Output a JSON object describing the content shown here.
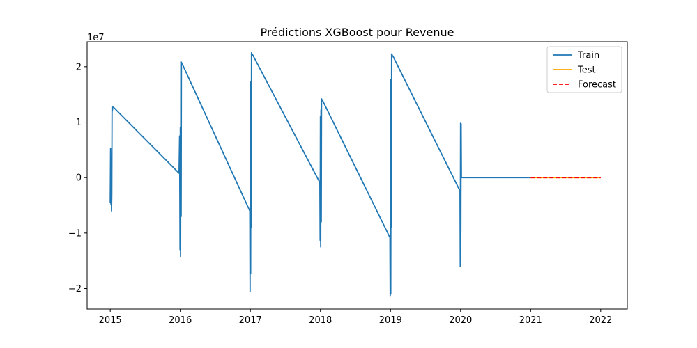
{
  "chart_data": {
    "type": "line",
    "title": "Prédictions XGBoost pour Revenue",
    "xlabel": "",
    "ylabel": "",
    "y_offset_label": "1e7",
    "xlim": [
      2014.67,
      2022.38
    ],
    "ylim": [
      -23700000,
      24500000
    ],
    "x_ticks": [
      {
        "value": 2015,
        "label": "2015"
      },
      {
        "value": 2016,
        "label": "2016"
      },
      {
        "value": 2017,
        "label": "2017"
      },
      {
        "value": 2018,
        "label": "2018"
      },
      {
        "value": 2019,
        "label": "2019"
      },
      {
        "value": 2020,
        "label": "2020"
      },
      {
        "value": 2021,
        "label": "2021"
      },
      {
        "value": 2022,
        "label": "2022"
      }
    ],
    "y_ticks": [
      {
        "value": 20000000,
        "label": "2"
      },
      {
        "value": 10000000,
        "label": "1"
      },
      {
        "value": 0,
        "label": "0"
      },
      {
        "value": -10000000,
        "label": "−1"
      },
      {
        "value": -20000000,
        "label": "−2"
      }
    ],
    "grid": false,
    "legend": "upper right",
    "series": [
      {
        "name": "Train",
        "color": "#1f77b4",
        "style": "solid",
        "x": [
          2015.0,
          2015.005,
          2015.01,
          2015.014,
          2015.018,
          2015.022,
          2015.026,
          2015.03,
          2015.034,
          2015.038,
          2015.045,
          2015.982,
          2015.99,
          2015.996,
          2016.0,
          2016.004,
          2016.008,
          2016.012,
          2016.016,
          2016.02,
          2016.024,
          2016.028,
          2016.035,
          2016.992,
          2016.996,
          2017.0,
          2017.004,
          2017.008,
          2017.012,
          2017.016,
          2017.02,
          2017.024,
          2017.028,
          2017.035,
          2017.992,
          2017.996,
          2018.0,
          2018.004,
          2018.008,
          2018.012,
          2018.016,
          2018.02,
          2018.024,
          2018.028,
          2018.035,
          2018.992,
          2018.996,
          2019.0,
          2019.004,
          2019.008,
          2019.012,
          2019.016,
          2019.02,
          2019.024,
          2019.028,
          2019.035,
          2019.992,
          2019.996,
          2020.0,
          2020.004,
          2020.008,
          2020.012,
          2020.016,
          2020.02,
          2021.0
        ],
        "y": [
          -4500000,
          5300000,
          -4800000,
          2500000,
          -6000000,
          -3000000,
          12800000,
          12000000,
          12600000,
          12700000,
          12700000,
          800000,
          7500000,
          -13000000,
          9000000,
          -14200000,
          20900000,
          -7000000,
          20800000,
          20600000,
          20500000,
          20400000,
          20300000,
          -6000000,
          -20600000,
          17200000,
          -17300000,
          17300000,
          -9000000,
          22500000,
          22400000,
          22300000,
          22200000,
          22100000,
          -900000,
          -11300000,
          11000000,
          -12500000,
          12200000,
          -8000000,
          14200000,
          14100000,
          14000000,
          13900000,
          13800000,
          -10800000,
          -21400000,
          17700000,
          -21000000,
          17500000,
          -9000000,
          22300000,
          22200000,
          22100000,
          22000000,
          21900000,
          -2400000,
          -16000000,
          9800000,
          -10000000,
          9700000,
          0,
          0,
          0,
          0
        ]
      },
      {
        "name": "Test",
        "color": "#ffa500",
        "style": "solid",
        "x": [
          2021.0,
          2022.0
        ],
        "y": [
          0,
          0
        ]
      },
      {
        "name": "Forecast",
        "color": "#ff0000",
        "style": "dashed",
        "x": [
          2021.0,
          2022.0
        ],
        "y": [
          0,
          0
        ]
      }
    ]
  }
}
